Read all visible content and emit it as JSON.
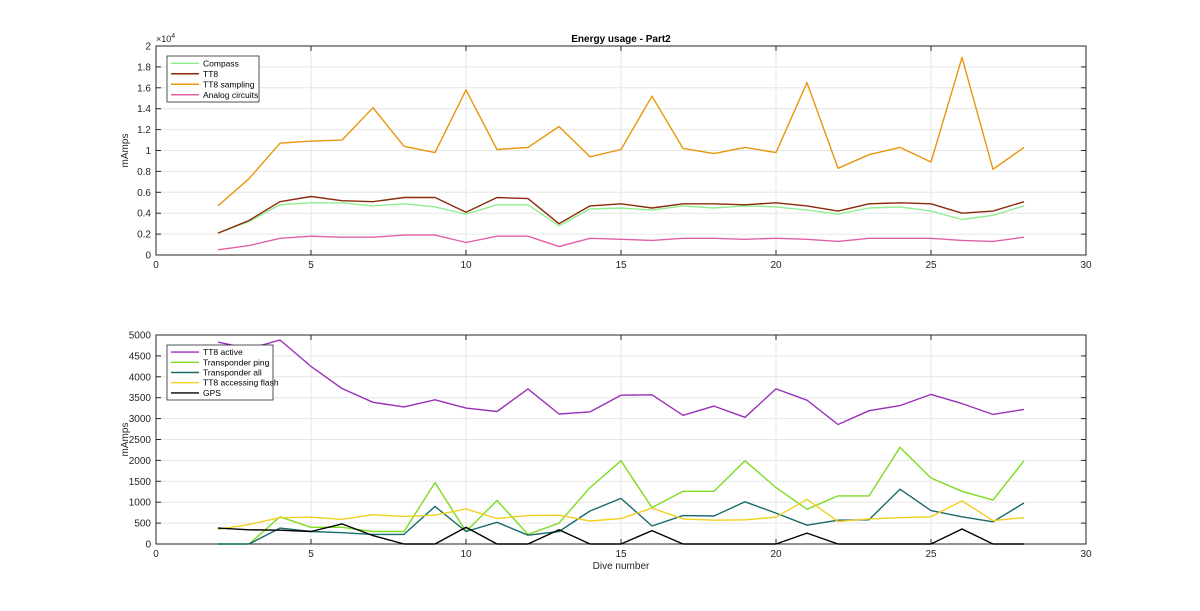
{
  "chart_data": [
    {
      "type": "line",
      "title": "Energy usage - Part2",
      "xlabel": "",
      "ylabel": "mAmps",
      "xlim": [
        0,
        30
      ],
      "ylim": [
        0,
        20000
      ],
      "y_exponent_label": "× 10^4",
      "y_exponent_base": "×10",
      "y_exponent_power": "4",
      "xticks": [
        "0",
        "5",
        "10",
        "15",
        "20",
        "25",
        "30"
      ],
      "yticks": [
        "0",
        "0.2",
        "0.4",
        "0.6",
        "0.8",
        "1",
        "1.2",
        "1.4",
        "1.6",
        "1.8",
        "2"
      ],
      "grid": true,
      "legend_position": "top-left",
      "x": [
        2,
        3,
        4,
        5,
        6,
        7,
        8,
        9,
        10,
        11,
        12,
        13,
        14,
        15,
        16,
        17,
        18,
        19,
        20,
        21,
        22,
        23,
        24,
        25,
        26,
        27,
        28
      ],
      "series": [
        {
          "name": "Compass",
          "color": "#90ee90",
          "values": [
            2100,
            3200,
            4800,
            5000,
            5000,
            4700,
            4900,
            4600,
            3900,
            4800,
            4800,
            2800,
            4400,
            4500,
            4300,
            4700,
            4500,
            4700,
            4600,
            4300,
            3900,
            4500,
            4600,
            4200,
            3400,
            3800,
            4700
          ]
        },
        {
          "name": "TT8",
          "color": "#8b2a0a",
          "values": [
            2100,
            3300,
            5100,
            5600,
            5200,
            5100,
            5500,
            5500,
            4100,
            5500,
            5400,
            3000,
            4700,
            4900,
            4500,
            4900,
            4900,
            4800,
            5000,
            4700,
            4200,
            4900,
            5000,
            4900,
            4000,
            4200,
            5100
          ]
        },
        {
          "name": "TT8 sampling",
          "color": "#e8960a",
          "values": [
            4700,
            7300,
            10700,
            10900,
            11000,
            14100,
            10400,
            9800,
            15800,
            10100,
            10300,
            12300,
            9400,
            10100,
            15200,
            10200,
            9700,
            10300,
            9800,
            16500,
            8300,
            9600,
            10300,
            8900,
            18900,
            8200,
            10300
          ]
        },
        {
          "name": "Analog circuits",
          "color": "#e060a8",
          "values": [
            500,
            900,
            1600,
            1800,
            1700,
            1700,
            1900,
            1900,
            1200,
            1800,
            1800,
            800,
            1600,
            1500,
            1400,
            1600,
            1600,
            1500,
            1600,
            1500,
            1300,
            1600,
            1600,
            1600,
            1400,
            1300,
            1700
          ]
        }
      ]
    },
    {
      "type": "line",
      "title": "",
      "xlabel": "Dive number",
      "ylabel": "mAmps",
      "xlim": [
        0,
        30
      ],
      "ylim": [
        0,
        5000
      ],
      "xticks": [
        "0",
        "5",
        "10",
        "15",
        "20",
        "25",
        "30"
      ],
      "yticks": [
        "0",
        "500",
        "1000",
        "1500",
        "2000",
        "2500",
        "3000",
        "3500",
        "4000",
        "4500",
        "5000"
      ],
      "grid": true,
      "legend_position": "top-left",
      "x": [
        2,
        3,
        4,
        5,
        6,
        7,
        8,
        9,
        10,
        11,
        12,
        13,
        14,
        15,
        16,
        17,
        18,
        19,
        20,
        21,
        22,
        23,
        24,
        25,
        26,
        27,
        28
      ],
      "series": [
        {
          "name": "TT8 active",
          "color": "#9b30b8",
          "values": [
            4830,
            4670,
            4880,
            4250,
            3720,
            3390,
            3280,
            3450,
            3250,
            3170,
            3710,
            3110,
            3160,
            3560,
            3570,
            3080,
            3300,
            3030,
            3710,
            3440,
            2860,
            3190,
            3310,
            3580,
            3360,
            3100,
            3220
          ]
        },
        {
          "name": "Transponder ping",
          "color": "#7ddc1f",
          "values": [
            0,
            0,
            650,
            400,
            400,
            300,
            300,
            1470,
            300,
            1040,
            230,
            500,
            1350,
            1990,
            870,
            1260,
            1260,
            1990,
            1350,
            830,
            1150,
            1150,
            2310,
            1580,
            1260,
            1050,
            1990
          ]
        },
        {
          "name": "Transponder all",
          "color": "#1a6b6b",
          "values": [
            0,
            0,
            380,
            300,
            270,
            230,
            230,
            900,
            300,
            520,
            210,
            300,
            790,
            1090,
            430,
            680,
            670,
            1010,
            740,
            450,
            570,
            580,
            1310,
            800,
            650,
            530,
            980
          ]
        },
        {
          "name": "TT8 accessing flash",
          "color": "#f0d020",
          "values": [
            350,
            470,
            630,
            640,
            590,
            700,
            660,
            690,
            840,
            610,
            680,
            690,
            550,
            610,
            860,
            600,
            570,
            580,
            640,
            1070,
            540,
            600,
            630,
            650,
            1030,
            560,
            630
          ]
        },
        {
          "name": "GPS",
          "color": "#000000",
          "values": [
            380,
            340,
            330,
            300,
            480,
            200,
            0,
            0,
            400,
            0,
            0,
            340,
            0,
            0,
            320,
            0,
            0,
            0,
            0,
            260,
            0,
            0,
            0,
            0,
            360,
            0,
            0
          ]
        }
      ]
    }
  ]
}
